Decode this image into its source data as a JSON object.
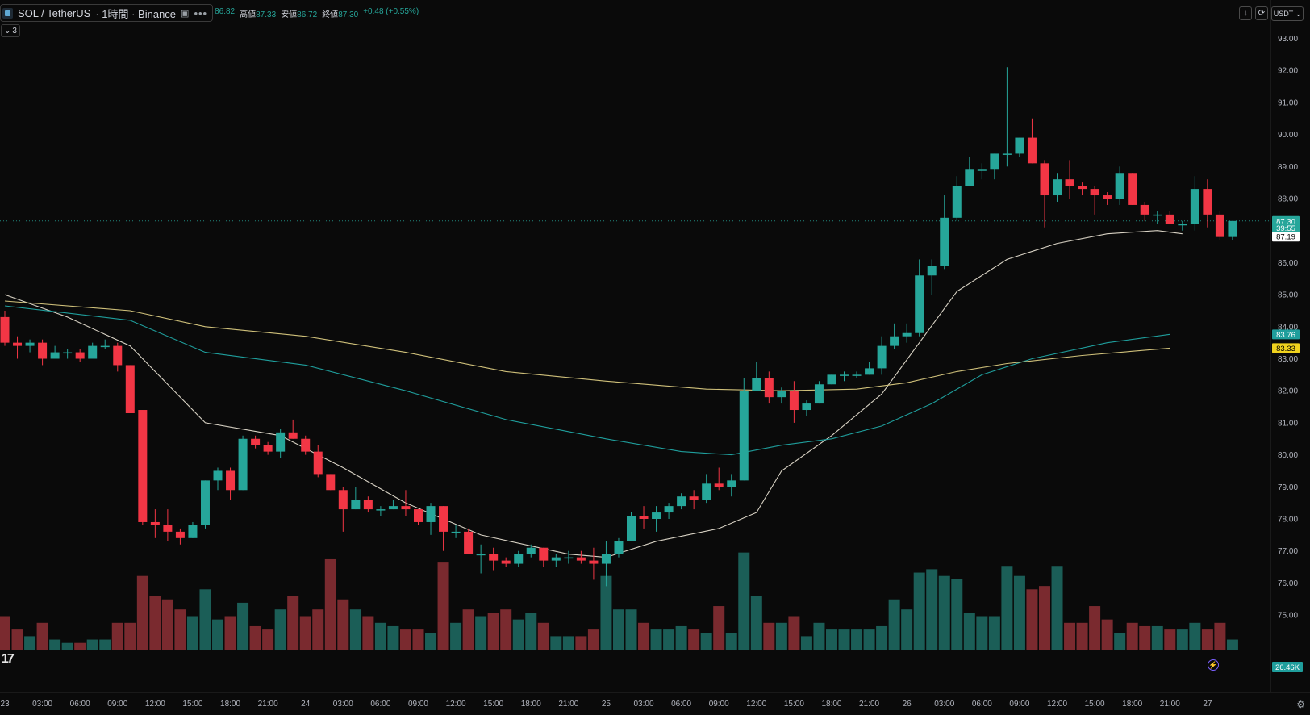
{
  "header": {
    "symbol": "SOL / TetherUS",
    "interval_exchange": "· 1時間 · Binance",
    "more": "•••",
    "ohlc": {
      "open_value": "86.82",
      "high_label": "高値",
      "high_value": "87.33",
      "low_label": "安値",
      "low_value": "86.72",
      "close_label": "終値",
      "close_value": "87.30",
      "change": "+0.48 (+0.55%)"
    },
    "indicator_count": "3"
  },
  "toolbar": {
    "currency": "USDT"
  },
  "colors": {
    "up": "#26a69a",
    "down": "#f23645",
    "ma_fast": "#d8d2c4",
    "ma_mid": "#1f9e9c",
    "ma_slow": "#cfc07a",
    "background": "#0a0a0a"
  },
  "chart_data": {
    "type": "candlestick",
    "y_axis": {
      "min": 74.2,
      "max": 93.8,
      "ticks": [
        "93.00",
        "92.00",
        "91.00",
        "90.00",
        "89.00",
        "88.00",
        "87.00",
        "86.00",
        "85.00",
        "84.00",
        "83.00",
        "82.00",
        "81.00",
        "80.00",
        "79.00",
        "78.00",
        "77.00",
        "76.00",
        "75.00"
      ],
      "tick_values": [
        93,
        92,
        91,
        90,
        89,
        88,
        87,
        86,
        85,
        84,
        83,
        82,
        81,
        80,
        79,
        78,
        77,
        76,
        75
      ]
    },
    "x_axis": {
      "labels": [
        {
          "i": 0,
          "t": "23"
        },
        {
          "i": 3,
          "t": "03:00"
        },
        {
          "i": 6,
          "t": "06:00"
        },
        {
          "i": 9,
          "t": "09:00"
        },
        {
          "i": 12,
          "t": "12:00"
        },
        {
          "i": 15,
          "t": "15:00"
        },
        {
          "i": 18,
          "t": "18:00"
        },
        {
          "i": 21,
          "t": "21:00"
        },
        {
          "i": 24,
          "t": "24"
        },
        {
          "i": 27,
          "t": "03:00"
        },
        {
          "i": 30,
          "t": "06:00"
        },
        {
          "i": 33,
          "t": "09:00"
        },
        {
          "i": 36,
          "t": "12:00"
        },
        {
          "i": 39,
          "t": "15:00"
        },
        {
          "i": 42,
          "t": "18:00"
        },
        {
          "i": 45,
          "t": "21:00"
        },
        {
          "i": 48,
          "t": "25"
        },
        {
          "i": 51,
          "t": "03:00"
        },
        {
          "i": 54,
          "t": "06:00"
        },
        {
          "i": 57,
          "t": "09:00"
        },
        {
          "i": 60,
          "t": "12:00"
        },
        {
          "i": 63,
          "t": "15:00"
        },
        {
          "i": 66,
          "t": "18:00"
        },
        {
          "i": 69,
          "t": "21:00"
        },
        {
          "i": 72,
          "t": "26"
        },
        {
          "i": 75,
          "t": "03:00"
        },
        {
          "i": 78,
          "t": "06:00"
        },
        {
          "i": 81,
          "t": "09:00"
        },
        {
          "i": 84,
          "t": "12:00"
        },
        {
          "i": 87,
          "t": "15:00"
        },
        {
          "i": 90,
          "t": "18:00"
        },
        {
          "i": 93,
          "t": "21:00"
        },
        {
          "i": 96,
          "t": "27"
        }
      ]
    },
    "candles": [
      [
        84.3,
        84.5,
        83.4,
        83.5,
        5
      ],
      [
        83.5,
        83.7,
        83.0,
        83.4,
        3
      ],
      [
        83.4,
        83.6,
        83.2,
        83.5,
        2
      ],
      [
        83.5,
        83.6,
        82.8,
        83.0,
        4
      ],
      [
        83.0,
        83.4,
        83.0,
        83.2,
        1.5
      ],
      [
        83.2,
        83.3,
        83.0,
        83.2,
        1
      ],
      [
        83.2,
        83.3,
        82.9,
        83.0,
        1
      ],
      [
        83.0,
        83.5,
        83.0,
        83.4,
        1.5
      ],
      [
        83.4,
        83.6,
        83.3,
        83.4,
        1.5
      ],
      [
        83.4,
        83.5,
        82.6,
        82.8,
        4
      ],
      [
        82.8,
        82.8,
        81.3,
        81.3,
        4
      ],
      [
        81.4,
        81.4,
        77.8,
        77.9,
        11
      ],
      [
        77.9,
        78.3,
        77.4,
        77.8,
        8
      ],
      [
        77.8,
        78.3,
        77.3,
        77.6,
        7.5
      ],
      [
        77.6,
        77.7,
        77.2,
        77.4,
        6
      ],
      [
        77.4,
        77.9,
        77.4,
        77.8,
        5
      ],
      [
        77.8,
        79.2,
        77.7,
        79.2,
        9
      ],
      [
        79.2,
        79.6,
        78.9,
        79.5,
        4.5
      ],
      [
        79.5,
        79.6,
        78.6,
        78.9,
        5
      ],
      [
        78.9,
        80.6,
        78.9,
        80.5,
        7
      ],
      [
        80.5,
        80.6,
        80.2,
        80.3,
        3.5
      ],
      [
        80.3,
        80.4,
        80.0,
        80.1,
        3
      ],
      [
        80.1,
        80.8,
        79.9,
        80.7,
        6
      ],
      [
        80.7,
        81.1,
        80.5,
        80.5,
        8
      ],
      [
        80.5,
        80.6,
        80.0,
        80.1,
        5
      ],
      [
        80.1,
        80.3,
        79.3,
        79.4,
        6
      ],
      [
        79.4,
        79.4,
        78.9,
        78.9,
        13.5
      ],
      [
        78.9,
        79.0,
        77.6,
        78.3,
        7.5
      ],
      [
        78.3,
        79.0,
        78.3,
        78.6,
        6
      ],
      [
        78.6,
        78.7,
        78.2,
        78.3,
        5
      ],
      [
        78.3,
        78.4,
        78.1,
        78.3,
        4
      ],
      [
        78.3,
        78.6,
        78.3,
        78.4,
        3.5
      ],
      [
        78.4,
        78.9,
        78.1,
        78.3,
        3
      ],
      [
        78.3,
        78.3,
        77.8,
        77.9,
        3
      ],
      [
        77.9,
        78.5,
        77.5,
        78.4,
        2.5
      ],
      [
        78.4,
        78.4,
        77.0,
        77.6,
        13
      ],
      [
        77.6,
        77.8,
        77.4,
        77.6,
        4
      ],
      [
        77.6,
        77.7,
        76.9,
        76.9,
        6
      ],
      [
        76.9,
        77.2,
        76.3,
        76.9,
        5
      ],
      [
        76.9,
        77.1,
        76.4,
        76.7,
        5.5
      ],
      [
        76.7,
        76.8,
        76.5,
        76.6,
        6
      ],
      [
        76.6,
        77.0,
        76.5,
        76.9,
        4.5
      ],
      [
        76.9,
        77.2,
        76.8,
        77.1,
        5.5
      ],
      [
        77.1,
        77.1,
        76.5,
        76.7,
        4
      ],
      [
        76.7,
        76.9,
        76.5,
        76.8,
        2
      ],
      [
        76.8,
        77.0,
        76.6,
        76.8,
        2
      ],
      [
        76.8,
        77.0,
        76.6,
        76.7,
        2
      ],
      [
        76.7,
        77.1,
        76.1,
        76.6,
        3
      ],
      [
        76.6,
        77.3,
        75.9,
        76.9,
        11
      ],
      [
        76.9,
        77.4,
        76.8,
        77.3,
        6
      ],
      [
        77.3,
        78.2,
        77.3,
        78.1,
        6
      ],
      [
        78.1,
        78.4,
        77.7,
        78.0,
        4
      ],
      [
        78.0,
        78.4,
        77.6,
        78.2,
        3
      ],
      [
        78.2,
        78.5,
        78.0,
        78.4,
        3
      ],
      [
        78.4,
        78.8,
        78.3,
        78.7,
        3.5
      ],
      [
        78.7,
        78.9,
        78.3,
        78.6,
        3
      ],
      [
        78.6,
        79.4,
        78.5,
        79.1,
        2.5
      ],
      [
        79.1,
        79.6,
        78.9,
        79.0,
        6.5
      ],
      [
        79.0,
        79.4,
        78.7,
        79.2,
        2.5
      ],
      [
        79.2,
        82.4,
        79.2,
        82.0,
        14.5
      ],
      [
        82.0,
        82.9,
        82.0,
        82.4,
        8
      ],
      [
        82.4,
        82.6,
        81.6,
        81.8,
        4
      ],
      [
        81.8,
        82.1,
        81.6,
        82.0,
        4
      ],
      [
        82.0,
        82.3,
        81.0,
        81.4,
        5
      ],
      [
        81.4,
        81.7,
        81.2,
        81.6,
        2
      ],
      [
        81.6,
        82.3,
        81.6,
        82.2,
        4
      ],
      [
        82.2,
        82.5,
        82.2,
        82.5,
        3
      ],
      [
        82.5,
        82.6,
        82.3,
        82.5,
        3
      ],
      [
        82.5,
        82.6,
        82.4,
        82.5,
        3
      ],
      [
        82.5,
        82.9,
        82.5,
        82.7,
        3
      ],
      [
        82.7,
        83.7,
        82.5,
        83.4,
        3.5
      ],
      [
        83.4,
        84.1,
        83.3,
        83.7,
        7.5
      ],
      [
        83.7,
        84.1,
        83.5,
        83.8,
        6
      ],
      [
        83.8,
        86.1,
        83.7,
        85.6,
        11.5
      ],
      [
        85.6,
        86.1,
        85.0,
        85.9,
        12
      ],
      [
        85.9,
        88.1,
        85.8,
        87.4,
        11
      ],
      [
        87.4,
        88.7,
        87.3,
        88.4,
        10.5
      ],
      [
        88.4,
        89.3,
        88.4,
        88.9,
        5.5
      ],
      [
        88.9,
        89.1,
        88.6,
        88.9,
        5
      ],
      [
        88.9,
        89.4,
        88.6,
        89.4,
        5
      ],
      [
        89.4,
        92.1,
        89.0,
        89.4,
        12.5
      ],
      [
        89.4,
        89.9,
        89.3,
        89.9,
        11
      ],
      [
        89.9,
        90.5,
        89.1,
        89.1,
        9
      ],
      [
        89.1,
        89.2,
        87.1,
        88.1,
        9.5
      ],
      [
        88.1,
        88.8,
        87.9,
        88.6,
        12.5
      ],
      [
        88.6,
        89.2,
        88.0,
        88.4,
        4
      ],
      [
        88.4,
        88.5,
        88.1,
        88.3,
        4
      ],
      [
        88.3,
        88.4,
        87.5,
        88.1,
        6.5
      ],
      [
        88.1,
        88.2,
        87.8,
        88.0,
        4.5
      ],
      [
        88.0,
        89.0,
        87.8,
        88.8,
        2.5
      ],
      [
        88.8,
        88.8,
        87.8,
        87.8,
        4
      ],
      [
        87.8,
        87.9,
        87.3,
        87.5,
        3.5
      ],
      [
        87.5,
        87.6,
        87.2,
        87.5,
        3.5
      ],
      [
        87.5,
        87.6,
        87.2,
        87.2,
        3
      ],
      [
        87.2,
        87.3,
        87.0,
        87.2,
        3
      ],
      [
        87.2,
        88.7,
        87.0,
        88.3,
        4
      ],
      [
        88.3,
        88.6,
        87.1,
        87.5,
        3
      ],
      [
        87.5,
        87.6,
        86.7,
        86.8,
        4
      ],
      [
        86.8,
        87.3,
        86.7,
        87.3,
        1.5
      ]
    ],
    "moving_averages": [
      {
        "name": "fast",
        "color": "#d8d2c4",
        "points": [
          [
            0,
            85.0
          ],
          [
            5,
            84.3
          ],
          [
            10,
            83.4
          ],
          [
            16,
            81.0
          ],
          [
            22,
            80.6
          ],
          [
            27,
            79.6
          ],
          [
            32,
            78.5
          ],
          [
            38,
            77.5
          ],
          [
            45,
            76.9
          ],
          [
            48,
            76.8
          ],
          [
            52,
            77.3
          ],
          [
            57,
            77.7
          ],
          [
            60,
            78.2
          ],
          [
            62,
            79.5
          ],
          [
            66,
            80.6
          ],
          [
            70,
            81.9
          ],
          [
            73,
            83.5
          ],
          [
            76,
            85.1
          ],
          [
            80,
            86.1
          ],
          [
            84,
            86.6
          ],
          [
            88,
            86.9
          ],
          [
            92,
            87.0
          ],
          [
            94,
            86.9
          ]
        ]
      },
      {
        "name": "mid",
        "color": "#1f9e9c",
        "points": [
          [
            0,
            84.65
          ],
          [
            10,
            84.2
          ],
          [
            16,
            83.2
          ],
          [
            24,
            82.8
          ],
          [
            32,
            82.0
          ],
          [
            40,
            81.1
          ],
          [
            48,
            80.5
          ],
          [
            54,
            80.1
          ],
          [
            58,
            80.0
          ],
          [
            62,
            80.3
          ],
          [
            66,
            80.5
          ],
          [
            70,
            80.9
          ],
          [
            74,
            81.6
          ],
          [
            78,
            82.5
          ],
          [
            82,
            83.0
          ],
          [
            88,
            83.5
          ],
          [
            93,
            83.76
          ]
        ]
      },
      {
        "name": "slow",
        "color": "#cfc07a",
        "points": [
          [
            0,
            84.8
          ],
          [
            10,
            84.5
          ],
          [
            16,
            84.0
          ],
          [
            24,
            83.7
          ],
          [
            32,
            83.2
          ],
          [
            40,
            82.6
          ],
          [
            48,
            82.3
          ],
          [
            56,
            82.05
          ],
          [
            62,
            82.0
          ],
          [
            68,
            82.05
          ],
          [
            72,
            82.25
          ],
          [
            76,
            82.6
          ],
          [
            80,
            82.85
          ],
          [
            86,
            83.1
          ],
          [
            93,
            83.33
          ]
        ]
      }
    ],
    "price_tags": [
      {
        "value": 87.3,
        "label": "87.30",
        "bg": "#26a69a",
        "fg": "#ffffff"
      },
      {
        "value": 87.08,
        "label": "39:55",
        "bg": "#26a69a",
        "fg": "#ffffff"
      },
      {
        "value": 86.81,
        "label": "87.19",
        "bg": "#ffffff",
        "fg": "#000000"
      },
      {
        "value": 83.76,
        "label": "83.76",
        "bg": "#1f9e9c",
        "fg": "#ffffff"
      },
      {
        "value": 83.33,
        "label": "83.33",
        "bg": "#f0d21e",
        "fg": "#000000"
      }
    ],
    "volume_tag": "26.46K",
    "last_price": 87.3,
    "grid": false
  }
}
